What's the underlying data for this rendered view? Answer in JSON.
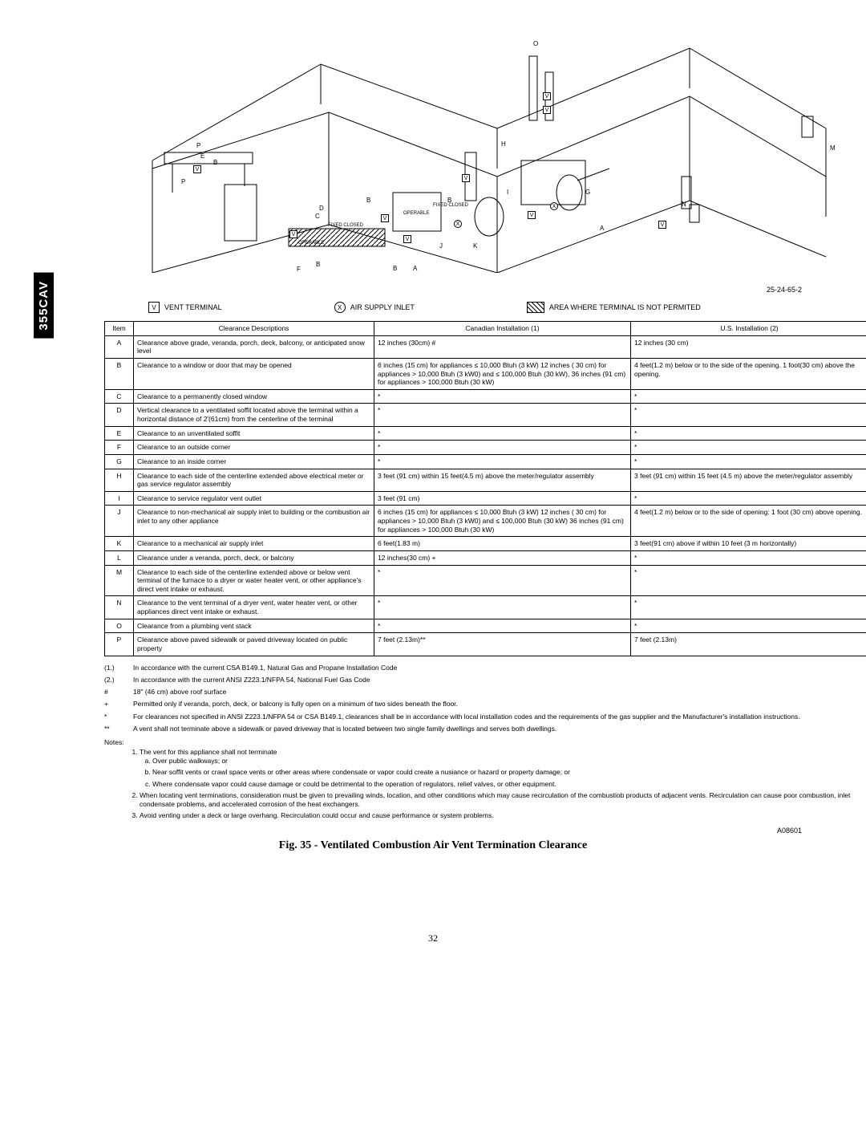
{
  "sidebar_model": "355CAV",
  "diagram": {
    "part_ref": "25-24-65-2",
    "labels": {
      "fixed_closed": "FIXED CLOSED",
      "operable": "OPERABLE"
    },
    "letters": [
      "A",
      "B",
      "C",
      "D",
      "E",
      "F",
      "G",
      "H",
      "I",
      "J",
      "K",
      "L",
      "M",
      "N",
      "O",
      "P",
      "V",
      "X"
    ]
  },
  "legend": {
    "vent_terminal": "VENT TERMINAL",
    "air_supply_inlet": "AIR SUPPLY INLET",
    "restricted_area": "AREA WHERE TERMINAL IS NOT PERMITED"
  },
  "table": {
    "headers": {
      "item": "Item",
      "desc": "Clearance Descriptions",
      "can": "Canadian Installation (1)",
      "us": "U.S. Installation (2)"
    },
    "rows": [
      {
        "item": "A",
        "desc": "Clearance above grade, veranda, porch, deck, balcony, or anticipated snow level",
        "can": "12 inches (30cm) #",
        "us": "12 inches (30 cm)"
      },
      {
        "item": "B",
        "desc": "Clearance to a window or door that may be opened",
        "can": "6 inches (15 cm) for appliances ≤ 10,000 Btuh (3 kW) 12 inches ( 30 cm) for appliances > 10,000 Btuh (3 kW0) and ≤ 100,000 Btuh (30 kW), 36 inches (91 cm) for appliances > 100,000 Btuh (30 kW)",
        "us": "4 feet(1.2 m) below or to the side of the opening. 1 foot(30 cm) above the opening."
      },
      {
        "item": "C",
        "desc": "Clearance to a permanently closed window",
        "can": "*",
        "us": "*"
      },
      {
        "item": "D",
        "desc": "Vertical clearance to a ventilated soffit located above the terminal within a horizontal distance of 2'(61cm) from the centerline of the terminal",
        "can": "*",
        "us": "*"
      },
      {
        "item": "E",
        "desc": "Clearance to an unventilated soffit",
        "can": "*",
        "us": "*"
      },
      {
        "item": "F",
        "desc": "Clearance to an outside corner",
        "can": "*",
        "us": "*"
      },
      {
        "item": "G",
        "desc": "Clearance to an inside corner",
        "can": "*",
        "us": "*"
      },
      {
        "item": "H",
        "desc": "Clearance to each side of the centerline extended above electrical meter or gas service regulator assembly",
        "can": "3 feet (91 cm) within 15 feet(4.5 m) above the meter/regulator assembly",
        "us": "3 feet (91 cm) within 15 feet (4.5 m) above the meter/regulator assembly"
      },
      {
        "item": "I",
        "desc": "Clearance to service regulator vent outlet",
        "can": "3  feet (91 cm)",
        "us": "*"
      },
      {
        "item": "J",
        "desc": "Clearance to non-mechanical air supply inlet to building or the combustion air inlet to any other appliance",
        "can": "6 inches (15 cm) for appliances ≤ 10,000 Btuh (3 kW) 12 inches ( 30 cm) for appliances > 10,000 Btuh (3 kW0) and ≤ 100,000 Btuh (30 kW) 36 inches (91 cm) for appliances > 100,000 Btuh (30 kW)",
        "us": "4 feet(1.2 m) below or to the side of opening: 1 foot (30 cm) above opening."
      },
      {
        "item": "K",
        "desc": "Clearance to a mechanical air supply inlet",
        "can": "6 feet(1.83 m)",
        "us": "3 feet(91 cm) above if within 10 feet (3 m horizontally)"
      },
      {
        "item": "L",
        "desc": "Clearance under a veranda, porch, deck, or balcony",
        "can": "12 inches(30 cm) +",
        "us": "*"
      },
      {
        "item": "M",
        "desc": "Clearance to each side of the centerline extended above or below vent terminal of the furnace to a dryer or water heater vent, or other appliance's direct vent intake or exhaust.",
        "can": "*",
        "us": "*"
      },
      {
        "item": "N",
        "desc": "Clearance to the vent terminal of a dryer vent, water heater vent, or other appliances direct vent intake or exhaust.",
        "can": "*",
        "us": "*"
      },
      {
        "item": "O",
        "desc": "Clearance from a plumbing vent stack",
        "can": "*",
        "us": "*"
      },
      {
        "item": "P",
        "desc": "Clearance above paved sidewalk or paved driveway located on public property",
        "can": "7 feet (2.13m)**",
        "us": "7 feet (2.13m)"
      }
    ]
  },
  "footnotes": [
    {
      "sym": "(1.)",
      "text": "In accordance with the current CSA B149.1, Natural Gas and Propane Installation Code"
    },
    {
      "sym": "(2.)",
      "text": "In accordance with the current ANSI Z223.1/NFPA 54, National Fuel Gas Code"
    },
    {
      "sym": "#",
      "text": "18\" (46 cm) above roof surface"
    },
    {
      "sym": "+",
      "text": "Permitted only if veranda, porch, deck, or balcony is fully open on a minimum of two sides beneath the floor."
    },
    {
      "sym": "*",
      "text": "For clearances not specified in ANSI Z223.1/NFPA 54 or CSA B149.1, clearances shall be in accordance with local installation codes and the requirements of the gas supplier and the Manufacturer's installation instructions."
    },
    {
      "sym": "**",
      "text": "A vent shall not terminate above a sidewalk or paved driveway that is located between two single family dwellings and serves both dwellings."
    }
  ],
  "notes": {
    "header": "Notes:",
    "items": [
      {
        "text": "The vent for this appliance shall not terminate",
        "sub": [
          "Over public walkways; or",
          "Near soffit vents or crawl space vents or other areas where condensate or vapor could create a nusiance or hazard or property damage; or",
          "Where condensate vapor could cause damage or could be detrimental to the operation of regulators, relief valves, or other equipment."
        ]
      },
      {
        "text": "When locating vent terminations, consideration must be given to prevailing winds, location, and other conditions which may cause recirculation of the combustiob products of adjacent vents. Recirculation can cause poor combustion, inlet condensate problems, and accelerated corrosion of the heat exchangers."
      },
      {
        "text": "Avoid venting under a deck or large overhang. Recirculation could occur and cause performance or system problems."
      }
    ]
  },
  "figure": {
    "code": "A08601",
    "caption": "Fig. 35 - Ventilated Combustion Air Vent Termination Clearance"
  },
  "page_number": "32"
}
